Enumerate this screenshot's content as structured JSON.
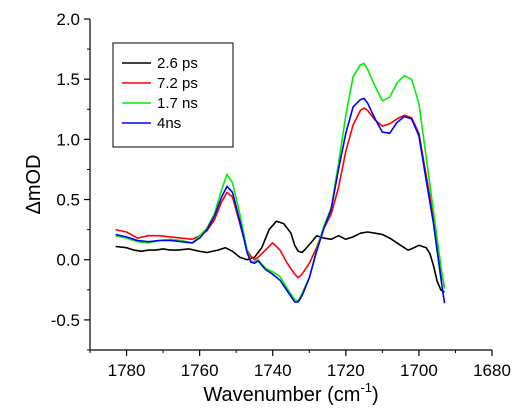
{
  "chart_data": {
    "type": "line",
    "title": "",
    "xlabel": "Wavenumber (cm",
    "xlabel_superscript": "-1",
    "xlabel_suffix": ")",
    "ylabel": "ΔmOD",
    "xlim": [
      1790,
      1680
    ],
    "ylim": [
      -0.75,
      2.0
    ],
    "x_reversed": true,
    "grid": false,
    "legend_position": "top-left",
    "xticks": [
      1780,
      1760,
      1740,
      1720,
      1700,
      1680
    ],
    "xtick_labels": [
      "1780",
      "1760",
      "1740",
      "1720",
      "1700",
      "1680"
    ],
    "yticks": [
      -0.5,
      0.0,
      0.5,
      1.0,
      1.5,
      2.0
    ],
    "ytick_labels": [
      "-0.5",
      "0.0",
      "0.5",
      "1.0",
      "1.5",
      "2.0"
    ],
    "series": [
      {
        "name": "2.6 ps",
        "color": "#000000",
        "points": [
          [
            1783,
            0.11
          ],
          [
            1780,
            0.1
          ],
          [
            1778,
            0.08
          ],
          [
            1776,
            0.07
          ],
          [
            1774,
            0.08
          ],
          [
            1772,
            0.08
          ],
          [
            1770,
            0.09
          ],
          [
            1768,
            0.08
          ],
          [
            1766,
            0.08
          ],
          [
            1763,
            0.09
          ],
          [
            1760,
            0.07
          ],
          [
            1758,
            0.06
          ],
          [
            1755,
            0.08
          ],
          [
            1753,
            0.1
          ],
          [
            1751,
            0.07
          ],
          [
            1749,
            0.02
          ],
          [
            1747,
            0.0
          ],
          [
            1745,
            0.02
          ],
          [
            1743,
            0.1
          ],
          [
            1741,
            0.25
          ],
          [
            1739,
            0.32
          ],
          [
            1737,
            0.3
          ],
          [
            1735,
            0.22
          ],
          [
            1734,
            0.12
          ],
          [
            1733,
            0.07
          ],
          [
            1732,
            0.06
          ],
          [
            1731,
            0.09
          ],
          [
            1729,
            0.16
          ],
          [
            1728,
            0.2
          ],
          [
            1726,
            0.18
          ],
          [
            1724,
            0.17
          ],
          [
            1722,
            0.2
          ],
          [
            1720,
            0.17
          ],
          [
            1718,
            0.19
          ],
          [
            1716,
            0.22
          ],
          [
            1714,
            0.23
          ],
          [
            1712,
            0.22
          ],
          [
            1710,
            0.21
          ],
          [
            1708,
            0.18
          ],
          [
            1706,
            0.14
          ],
          [
            1704,
            0.1
          ],
          [
            1703,
            0.08
          ],
          [
            1702,
            0.09
          ],
          [
            1700,
            0.12
          ],
          [
            1698,
            0.1
          ],
          [
            1697,
            0.05
          ],
          [
            1696,
            -0.05
          ],
          [
            1695,
            -0.18
          ],
          [
            1694,
            -0.25
          ],
          [
            1693,
            -0.27
          ]
        ]
      },
      {
        "name": "7.2 ps",
        "color": "#ff0000",
        "points": [
          [
            1783,
            0.25
          ],
          [
            1780,
            0.23
          ],
          [
            1777,
            0.18
          ],
          [
            1774,
            0.2
          ],
          [
            1771,
            0.2
          ],
          [
            1768,
            0.19
          ],
          [
            1765,
            0.18
          ],
          [
            1762,
            0.17
          ],
          [
            1760,
            0.2
          ],
          [
            1758,
            0.24
          ],
          [
            1756,
            0.33
          ],
          [
            1754,
            0.48
          ],
          [
            1752.5,
            0.56
          ],
          [
            1751,
            0.52
          ],
          [
            1749,
            0.3
          ],
          [
            1747,
            0.08
          ],
          [
            1746,
            0.03
          ],
          [
            1745,
            0.0
          ],
          [
            1744,
            0.02
          ],
          [
            1742,
            0.08
          ],
          [
            1740,
            0.14
          ],
          [
            1738,
            0.08
          ],
          [
            1736,
            -0.03
          ],
          [
            1734,
            -0.12
          ],
          [
            1733,
            -0.15
          ],
          [
            1732,
            -0.12
          ],
          [
            1730,
            -0.03
          ],
          [
            1728,
            0.1
          ],
          [
            1726,
            0.26
          ],
          [
            1724,
            0.38
          ],
          [
            1722,
            0.6
          ],
          [
            1720,
            0.9
          ],
          [
            1718,
            1.12
          ],
          [
            1716,
            1.24
          ],
          [
            1715,
            1.26
          ],
          [
            1714,
            1.24
          ],
          [
            1712,
            1.16
          ],
          [
            1710,
            1.11
          ],
          [
            1708,
            1.13
          ],
          [
            1706,
            1.17
          ],
          [
            1704,
            1.2
          ],
          [
            1702,
            1.18
          ],
          [
            1700,
            1.05
          ],
          [
            1698,
            0.7
          ],
          [
            1696,
            0.35
          ],
          [
            1694,
            -0.1
          ],
          [
            1693,
            -0.22
          ]
        ]
      },
      {
        "name": "1.7 ns",
        "color": "#00ee00",
        "points": [
          [
            1783,
            0.2
          ],
          [
            1780,
            0.18
          ],
          [
            1777,
            0.15
          ],
          [
            1774,
            0.14
          ],
          [
            1771,
            0.16
          ],
          [
            1768,
            0.17
          ],
          [
            1765,
            0.16
          ],
          [
            1762,
            0.14
          ],
          [
            1760,
            0.2
          ],
          [
            1758,
            0.26
          ],
          [
            1756,
            0.38
          ],
          [
            1754,
            0.58
          ],
          [
            1752.5,
            0.71
          ],
          [
            1751,
            0.64
          ],
          [
            1749,
            0.38
          ],
          [
            1747,
            0.08
          ],
          [
            1746,
            -0.01
          ],
          [
            1745,
            -0.02
          ],
          [
            1744,
            0.0
          ],
          [
            1742,
            -0.07
          ],
          [
            1740,
            -0.1
          ],
          [
            1738,
            -0.14
          ],
          [
            1736,
            -0.24
          ],
          [
            1734,
            -0.33
          ],
          [
            1733,
            -0.34
          ],
          [
            1732,
            -0.28
          ],
          [
            1730,
            -0.15
          ],
          [
            1728,
            0.08
          ],
          [
            1726,
            0.28
          ],
          [
            1724,
            0.43
          ],
          [
            1722,
            0.8
          ],
          [
            1720,
            1.2
          ],
          [
            1718,
            1.52
          ],
          [
            1716,
            1.62
          ],
          [
            1715,
            1.63
          ],
          [
            1714,
            1.58
          ],
          [
            1712,
            1.44
          ],
          [
            1710,
            1.32
          ],
          [
            1708,
            1.35
          ],
          [
            1706,
            1.47
          ],
          [
            1704,
            1.53
          ],
          [
            1702,
            1.5
          ],
          [
            1700,
            1.3
          ],
          [
            1698,
            0.85
          ],
          [
            1696,
            0.4
          ],
          [
            1694,
            -0.05
          ],
          [
            1693,
            -0.24
          ]
        ]
      },
      {
        "name": "4ns",
        "color": "#0000ff",
        "points": [
          [
            1783,
            0.21
          ],
          [
            1780,
            0.19
          ],
          [
            1777,
            0.16
          ],
          [
            1774,
            0.15
          ],
          [
            1771,
            0.16
          ],
          [
            1768,
            0.16
          ],
          [
            1765,
            0.15
          ],
          [
            1762,
            0.14
          ],
          [
            1760,
            0.18
          ],
          [
            1758,
            0.25
          ],
          [
            1756,
            0.36
          ],
          [
            1754,
            0.52
          ],
          [
            1752.5,
            0.61
          ],
          [
            1751,
            0.56
          ],
          [
            1749,
            0.32
          ],
          [
            1747,
            0.06
          ],
          [
            1746,
            -0.02
          ],
          [
            1745,
            -0.03
          ],
          [
            1744,
            -0.01
          ],
          [
            1742,
            -0.08
          ],
          [
            1740,
            -0.12
          ],
          [
            1738,
            -0.17
          ],
          [
            1736,
            -0.26
          ],
          [
            1734,
            -0.35
          ],
          [
            1733,
            -0.35
          ],
          [
            1732,
            -0.3
          ],
          [
            1730,
            -0.15
          ],
          [
            1728,
            0.07
          ],
          [
            1726,
            0.26
          ],
          [
            1724,
            0.42
          ],
          [
            1722,
            0.75
          ],
          [
            1720,
            1.05
          ],
          [
            1718,
            1.27
          ],
          [
            1716,
            1.33
          ],
          [
            1715,
            1.34
          ],
          [
            1714,
            1.3
          ],
          [
            1712,
            1.17
          ],
          [
            1710,
            1.06
          ],
          [
            1708,
            1.05
          ],
          [
            1706,
            1.14
          ],
          [
            1704,
            1.19
          ],
          [
            1702,
            1.17
          ],
          [
            1700,
            1.03
          ],
          [
            1698,
            0.66
          ],
          [
            1696,
            0.3
          ],
          [
            1694,
            -0.15
          ],
          [
            1693,
            -0.36
          ]
        ]
      }
    ]
  }
}
